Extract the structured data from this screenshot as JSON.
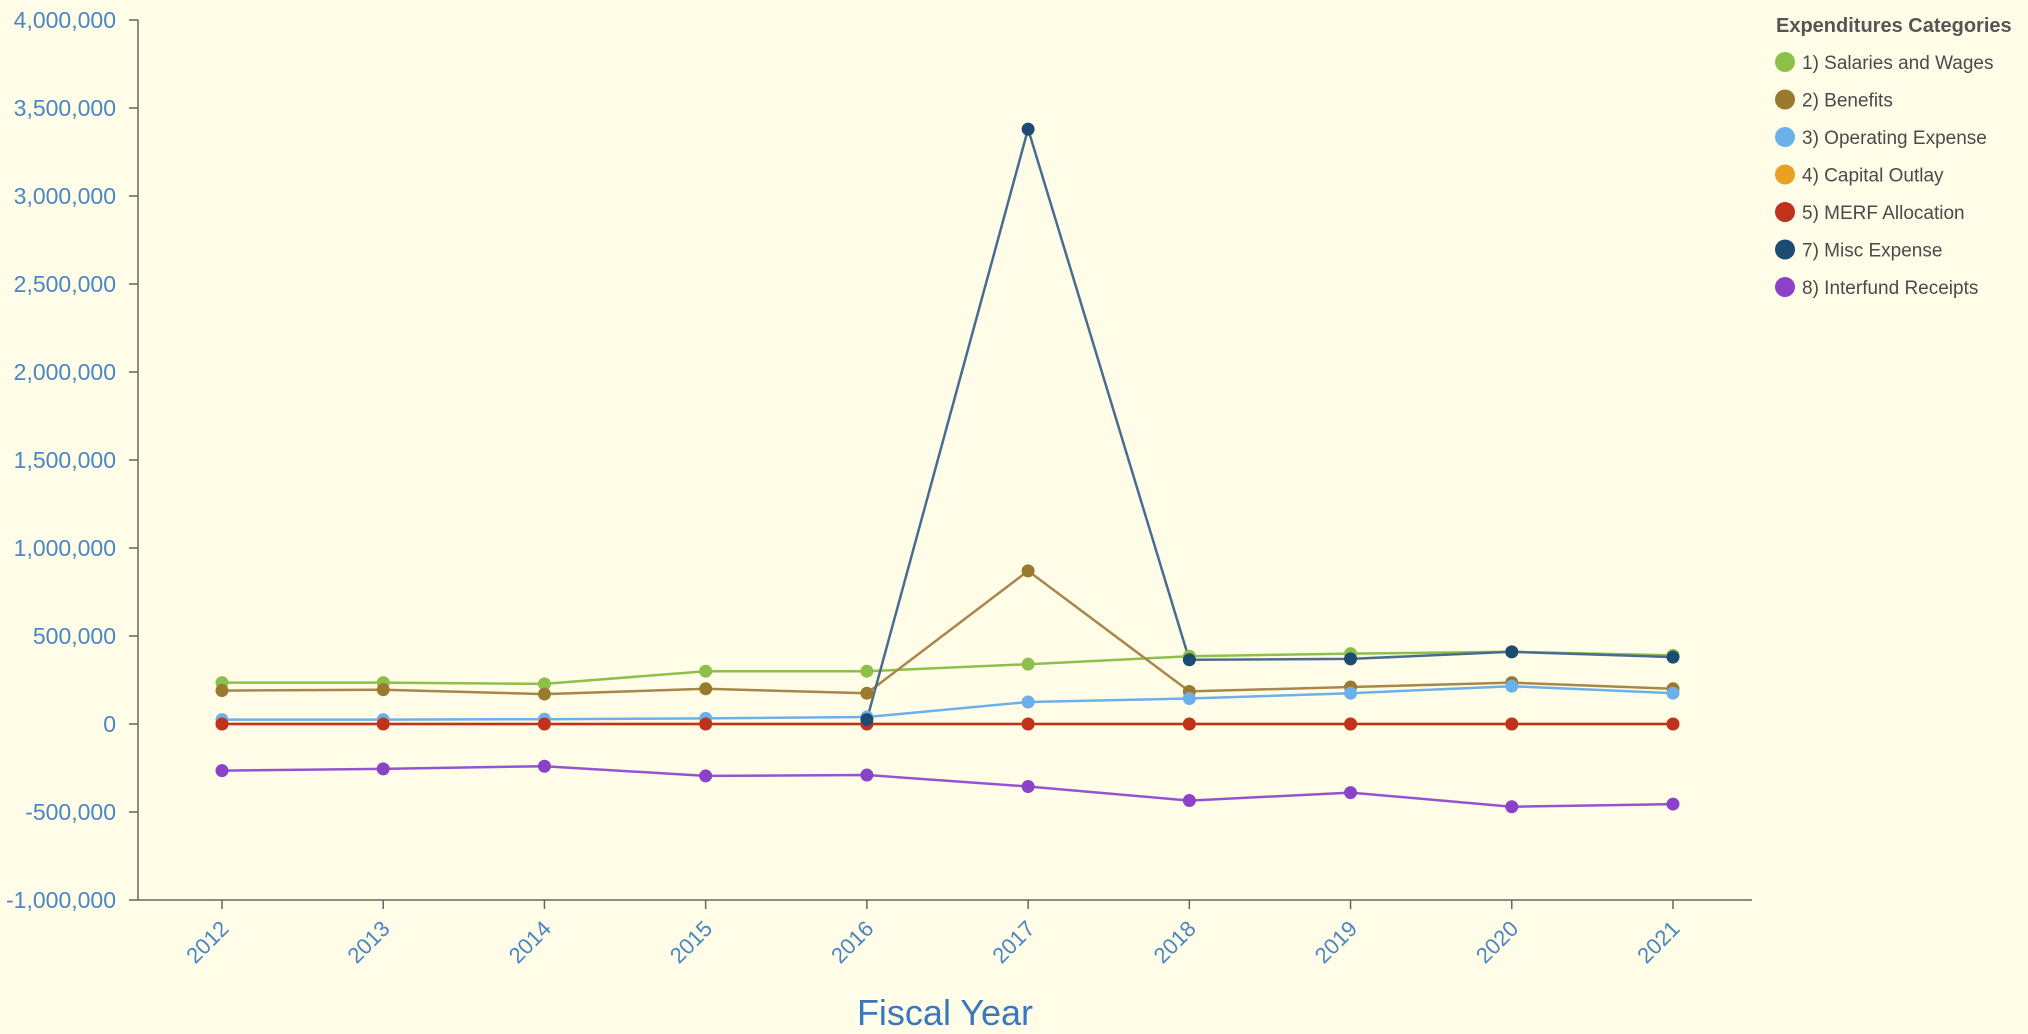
{
  "chart_data": {
    "type": "line",
    "title": "",
    "xlabel": "Fiscal Year",
    "ylabel": "",
    "x": [
      "2012",
      "2013",
      "2014",
      "2015",
      "2016",
      "2017",
      "2018",
      "2019",
      "2020",
      "2021"
    ],
    "ylim": [
      -1000000,
      4000000
    ],
    "yticks": [
      -1000000,
      -500000,
      0,
      500000,
      1000000,
      1500000,
      2000000,
      2500000,
      3000000,
      3500000,
      4000000
    ],
    "ytick_labels": [
      "-1,000,000",
      "-500,000",
      "0",
      "500,000",
      "1,000,000",
      "1,500,000",
      "2,000,000",
      "2,500,000",
      "3,000,000",
      "3,500,000",
      "4,000,000"
    ],
    "grid": false,
    "legend": {
      "title": "Expenditures Categories",
      "position": "top-right"
    },
    "series": [
      {
        "name": "1) Salaries and Wages",
        "color": "#8dc04a",
        "line_color": "#8dc04a",
        "values": [
          235000,
          235000,
          228000,
          300000,
          300000,
          340000,
          385000,
          400000,
          410000,
          390000
        ]
      },
      {
        "name": "2) Benefits",
        "color": "#9a7a2e",
        "line_color": "#a8884a",
        "values": [
          190000,
          195000,
          170000,
          200000,
          175000,
          870000,
          185000,
          210000,
          235000,
          200000
        ]
      },
      {
        "name": "3) Operating Expense",
        "color": "#6ab0ea",
        "line_color": "#6ab0ea",
        "values": [
          25000,
          25000,
          27000,
          32000,
          40000,
          125000,
          145000,
          175000,
          215000,
          175000
        ]
      },
      {
        "name": "4) Capital Outlay",
        "color": "#eaa021",
        "line_color": "#eaa021",
        "values": [
          0,
          0,
          0,
          0,
          0,
          0,
          0,
          0,
          0,
          0
        ]
      },
      {
        "name": "5) MERF Allocation",
        "color": "#c0321c",
        "line_color": "#c0321c",
        "values": [
          0,
          0,
          0,
          0,
          0,
          0,
          0,
          0,
          0,
          0
        ]
      },
      {
        "name": "7) Misc Expense",
        "color": "#1e4b72",
        "line_color": "#4a6d8f",
        "values": [
          null,
          null,
          null,
          null,
          25000,
          3380000,
          365000,
          370000,
          410000,
          380000
        ]
      },
      {
        "name": "8) Interfund Receipts",
        "color": "#8b42c8",
        "line_color": "#9454d0",
        "values": [
          -265000,
          -255000,
          -240000,
          -295000,
          -290000,
          -355000,
          -435000,
          -390000,
          -470000,
          -455000
        ]
      }
    ]
  }
}
